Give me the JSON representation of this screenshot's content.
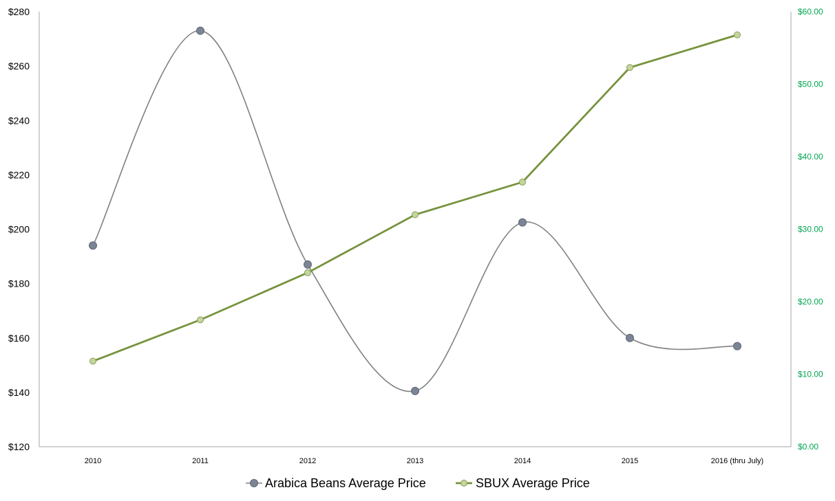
{
  "chart_data": {
    "type": "line",
    "categories": [
      "2010",
      "2011",
      "2012",
      "2013",
      "2014",
      "2015",
      "2016 (thru July)"
    ],
    "series": [
      {
        "name": "Arabica Beans Average Price",
        "axis": "left",
        "smooth": true,
        "values": [
          194,
          273,
          187,
          140.5,
          202.5,
          160,
          157
        ],
        "line_color": "#808080",
        "marker_color": "#7b8594"
      },
      {
        "name": "SBUX Average Price",
        "axis": "right",
        "smooth": false,
        "values": [
          11.8,
          17.5,
          24,
          32,
          36.5,
          52.3,
          56.8
        ],
        "line_color": "#76923c",
        "marker_color": "#c3d69b"
      }
    ],
    "y_left": {
      "range": [
        120,
        280
      ],
      "ticks": [
        120,
        140,
        160,
        180,
        200,
        220,
        240,
        260,
        280
      ],
      "tick_labels": [
        "$120",
        "$140",
        "$160",
        "$180",
        "$200",
        "$220",
        "$240",
        "$260",
        "$280"
      ]
    },
    "y_right": {
      "range": [
        0,
        60
      ],
      "ticks": [
        0,
        10,
        20,
        30,
        40,
        50,
        60
      ],
      "tick_labels": [
        "$0.00",
        "$10.00",
        "$20.00",
        "$30.00",
        "$40.00",
        "$50.00",
        "$60.00"
      ],
      "color": "#00a651"
    },
    "grid": false,
    "legend_position": "bottom-center"
  }
}
